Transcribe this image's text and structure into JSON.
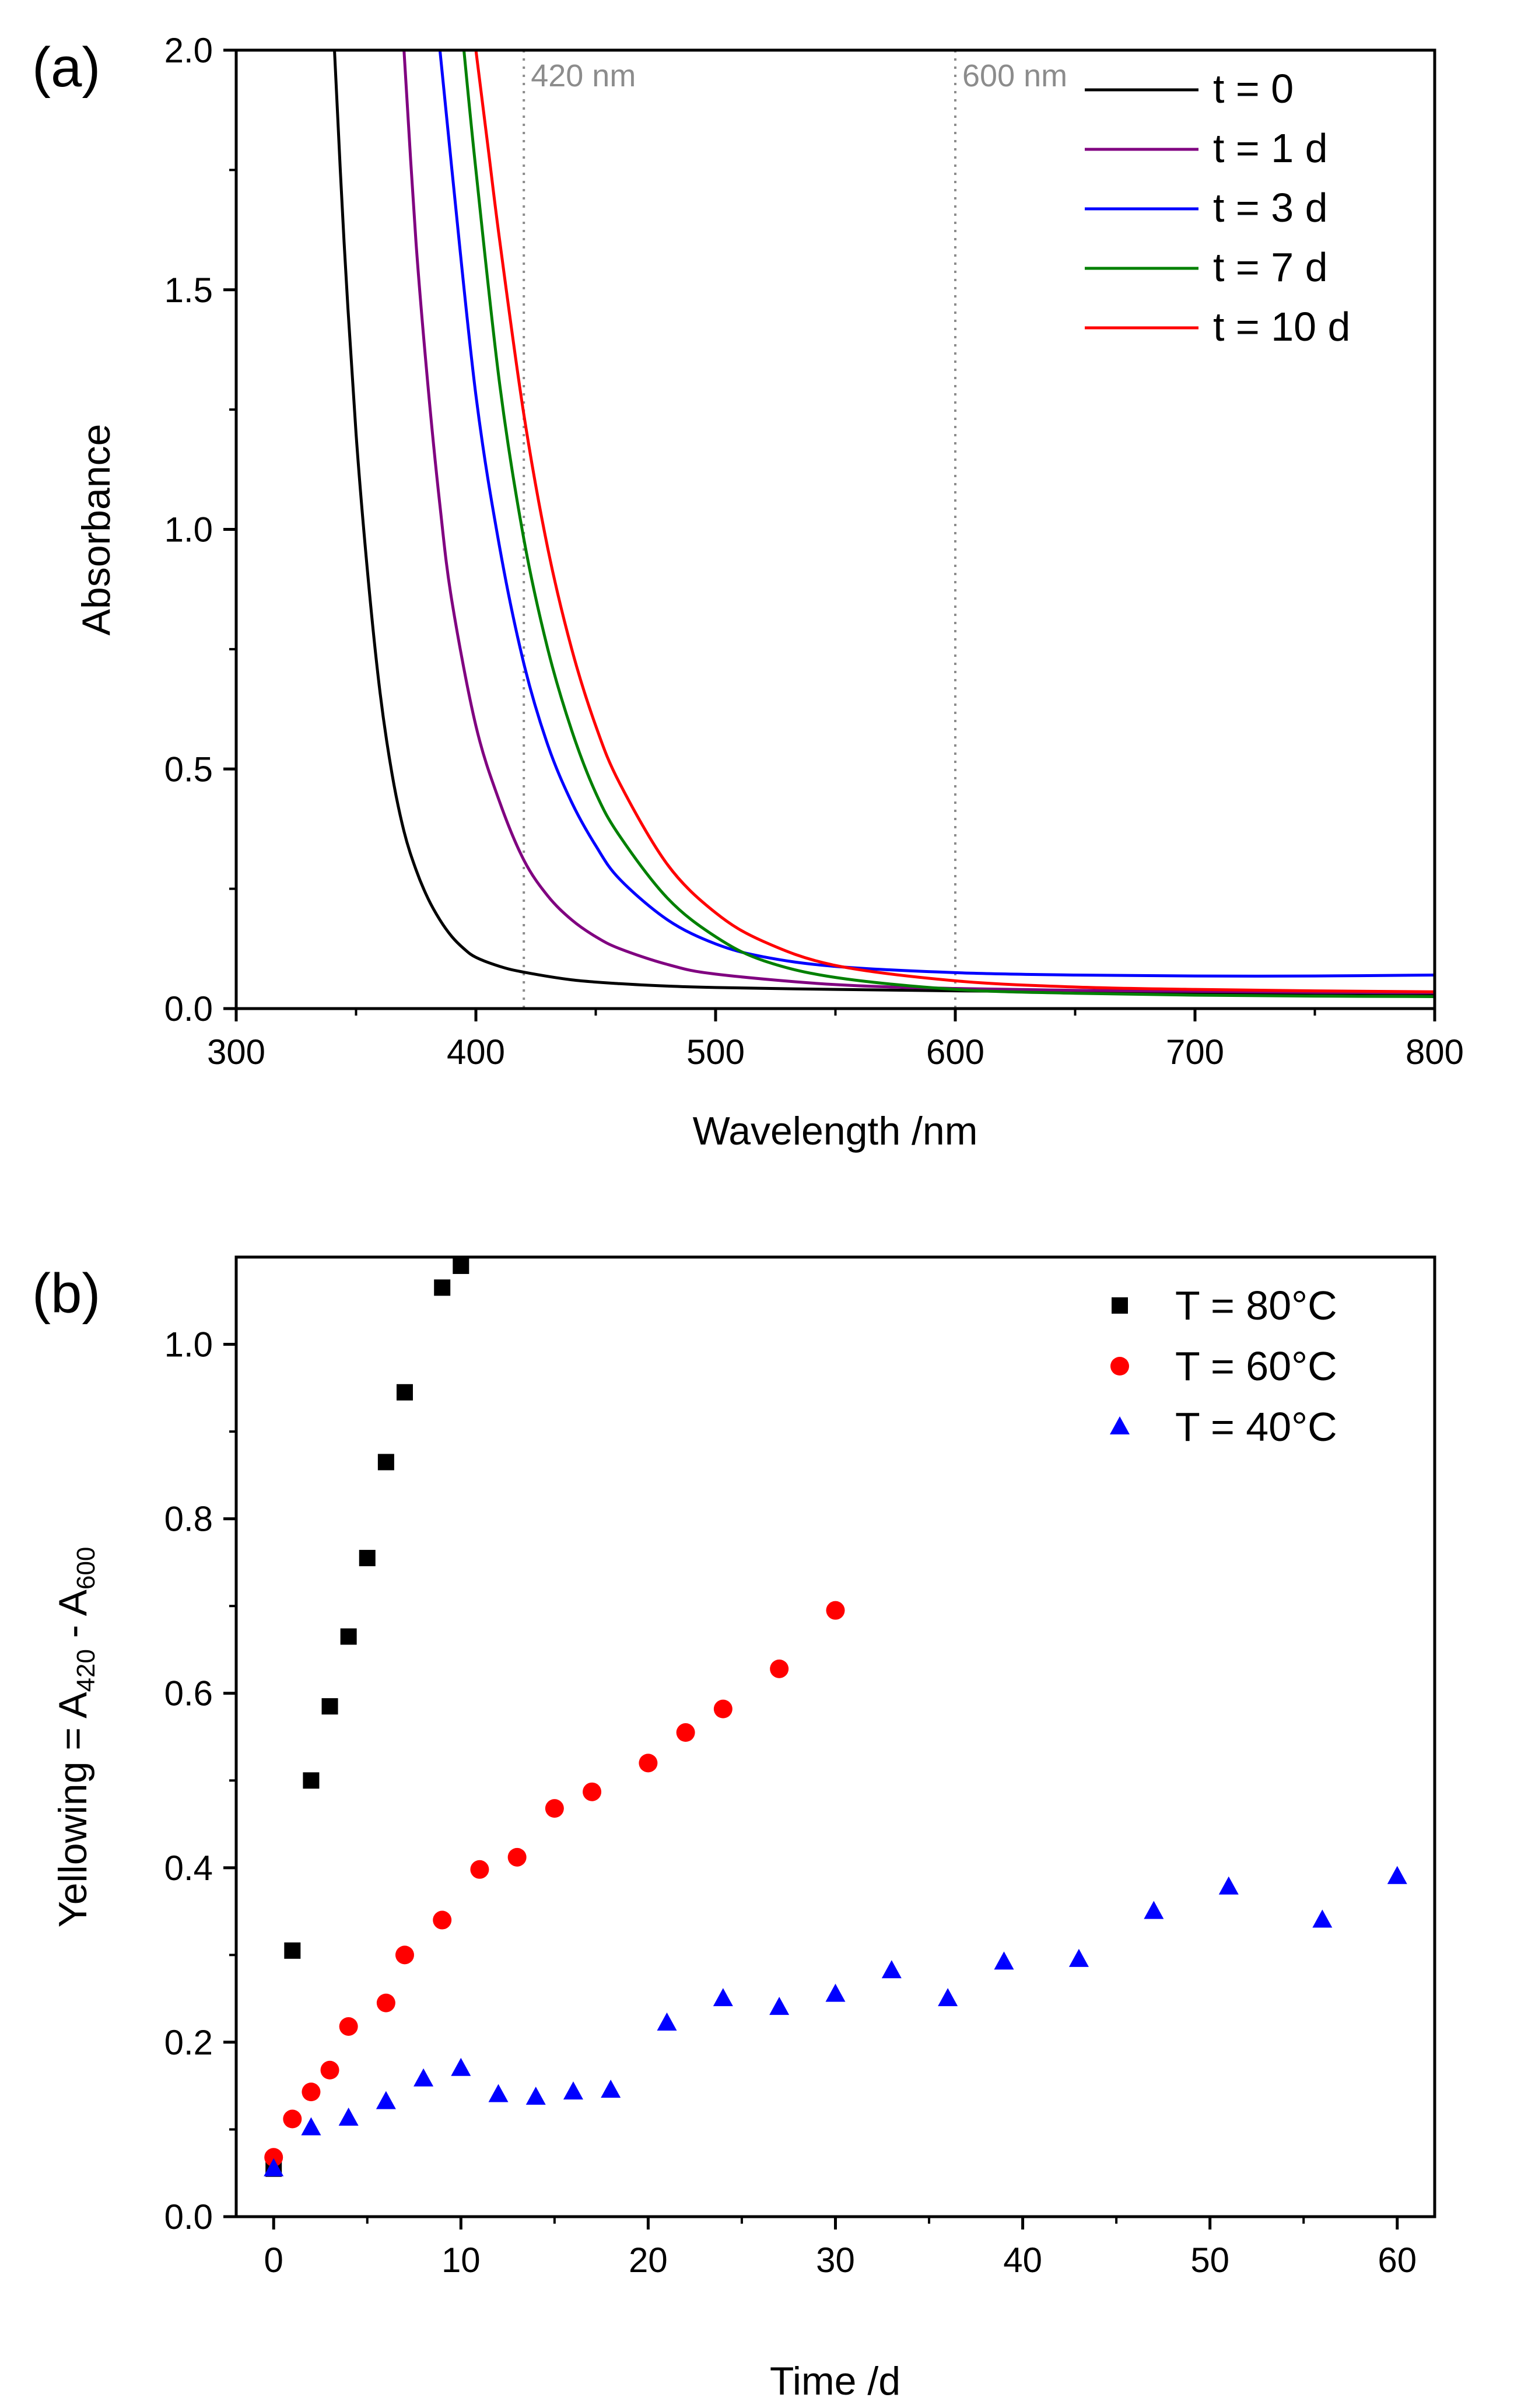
{
  "chart_data": [
    {
      "panel": "(a)",
      "type": "line",
      "xlabel": "Wavelength /nm",
      "ylabel": "Absorbance",
      "xlim": [
        300,
        800
      ],
      "ylim": [
        0,
        2.0
      ],
      "xticks": [
        300,
        400,
        500,
        600,
        700,
        800
      ],
      "yticks": [
        0.0,
        0.5,
        1.0,
        1.5,
        2.0
      ],
      "xtick_labels": [
        "300",
        "400",
        "500",
        "600",
        "700",
        "800"
      ],
      "ytick_labels": [
        "0.0",
        "0.5",
        "1.0",
        "1.5",
        "2.0"
      ],
      "legend_position": "top-right",
      "annotations": [
        {
          "x": 420,
          "label": "420 nm",
          "style": "dotted vertical line"
        },
        {
          "x": 600,
          "label": "600 nm",
          "style": "dotted vertical line"
        }
      ],
      "series": [
        {
          "name": "t = 0",
          "color": "#000000",
          "x": [
            341,
            345,
            350,
            355,
            360,
            365,
            370,
            375,
            380,
            385,
            390,
            395,
            400,
            410,
            420,
            440,
            460,
            480,
            500,
            550,
            600,
            650,
            700,
            750,
            800
          ],
          "y": [
            2.0,
            1.6,
            1.2,
            0.9,
            0.66,
            0.49,
            0.37,
            0.29,
            0.23,
            0.185,
            0.15,
            0.125,
            0.107,
            0.088,
            0.076,
            0.06,
            0.052,
            0.047,
            0.044,
            0.04,
            0.037,
            0.035,
            0.033,
            0.032,
            0.031
          ]
        },
        {
          "name": "t = 1 d",
          "color": "#800080",
          "x": [
            370,
            375,
            380,
            385,
            390,
            400,
            410,
            420,
            430,
            440,
            450,
            460,
            480,
            500,
            550,
            600,
            650,
            700,
            750,
            800
          ],
          "y": [
            2.0,
            1.6,
            1.3,
            1.05,
            0.85,
            0.59,
            0.43,
            0.31,
            0.235,
            0.185,
            0.15,
            0.125,
            0.092,
            0.072,
            0.05,
            0.042,
            0.038,
            0.036,
            0.034,
            0.033
          ]
        },
        {
          "name": "t = 3 d",
          "color": "#0000ff",
          "x": [
            385,
            390,
            400,
            410,
            420,
            430,
            440,
            450,
            460,
            480,
            500,
            520,
            550,
            600,
            650,
            700,
            750,
            800
          ],
          "y": [
            2.0,
            1.75,
            1.28,
            0.96,
            0.72,
            0.55,
            0.43,
            0.34,
            0.27,
            0.185,
            0.135,
            0.108,
            0.088,
            0.075,
            0.07,
            0.068,
            0.068,
            0.07
          ]
        },
        {
          "name": "t = 7 d",
          "color": "#008000",
          "x": [
            395,
            400,
            410,
            420,
            430,
            440,
            450,
            460,
            480,
            500,
            520,
            550,
            600,
            650,
            700,
            750,
            800
          ],
          "y": [
            2.0,
            1.75,
            1.3,
            0.98,
            0.75,
            0.58,
            0.45,
            0.36,
            0.23,
            0.15,
            0.1,
            0.065,
            0.04,
            0.032,
            0.028,
            0.026,
            0.025
          ]
        },
        {
          "name": "t = 10 d",
          "color": "#ff0000",
          "x": [
            400,
            405,
            410,
            420,
            430,
            440,
            450,
            460,
            480,
            500,
            520,
            550,
            600,
            650,
            700,
            750,
            800
          ],
          "y": [
            2.0,
            1.8,
            1.6,
            1.24,
            0.96,
            0.75,
            0.59,
            0.47,
            0.3,
            0.2,
            0.14,
            0.09,
            0.058,
            0.045,
            0.04,
            0.037,
            0.035
          ]
        }
      ]
    },
    {
      "panel": "(b)",
      "type": "scatter",
      "xlabel": "Time /d",
      "ylabel_main": "Yellowing = A",
      "ylabel_sub1": "420",
      "ylabel_mid": " - A",
      "ylabel_sub2": "600",
      "xlim": [
        -2,
        62
      ],
      "ylim": [
        0,
        1.1
      ],
      "xticks": [
        0,
        10,
        20,
        30,
        40,
        50,
        60
      ],
      "yticks": [
        0.0,
        0.2,
        0.4,
        0.6,
        0.8,
        1.0
      ],
      "xtick_labels": [
        "0",
        "10",
        "20",
        "30",
        "40",
        "50",
        "60"
      ],
      "ytick_labels": [
        "0.0",
        "0.2",
        "0.4",
        "0.6",
        "0.8",
        "1.0"
      ],
      "legend_position": "top-right",
      "series": [
        {
          "name": "T = 80°C",
          "color": "#000000",
          "marker": "square",
          "x": [
            0,
            1,
            2,
            3,
            4,
            5,
            6,
            7,
            9,
            10
          ],
          "y": [
            0.055,
            0.305,
            0.5,
            0.585,
            0.665,
            0.755,
            0.865,
            0.945,
            1.065,
            1.09
          ]
        },
        {
          "name": "T = 60°C",
          "color": "#ff0000",
          "marker": "circle",
          "x": [
            0,
            1,
            2,
            3,
            4,
            6,
            7,
            9,
            11,
            13,
            15,
            17,
            20,
            22,
            24,
            27,
            30
          ],
          "y": [
            0.068,
            0.112,
            0.143,
            0.168,
            0.218,
            0.245,
            0.3,
            0.34,
            0.398,
            0.412,
            0.468,
            0.487,
            0.52,
            0.555,
            0.582,
            0.628,
            0.695
          ]
        },
        {
          "name": "T = 40°C",
          "color": "#0000ff",
          "marker": "triangle",
          "x": [
            0,
            2,
            4,
            6,
            8,
            10,
            12,
            14,
            16,
            18,
            21,
            24,
            27,
            30,
            33,
            36,
            39,
            43,
            47,
            51,
            56,
            60
          ],
          "y": [
            0.055,
            0.102,
            0.113,
            0.132,
            0.158,
            0.17,
            0.14,
            0.137,
            0.143,
            0.145,
            0.222,
            0.25,
            0.24,
            0.255,
            0.282,
            0.25,
            0.292,
            0.295,
            0.35,
            0.378,
            0.34,
            0.39
          ]
        }
      ]
    }
  ]
}
